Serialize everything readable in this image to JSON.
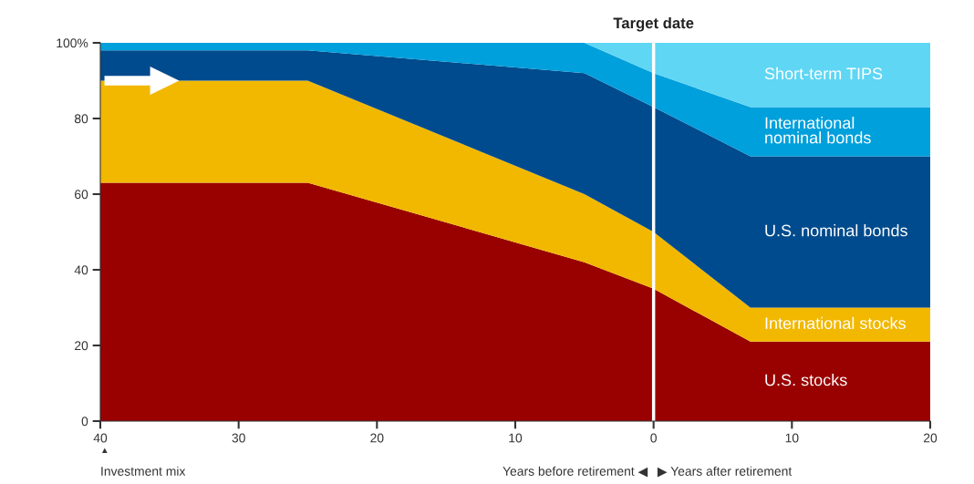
{
  "chart_data": {
    "type": "area",
    "stacked": true,
    "x": [
      -40,
      -25,
      -5,
      0,
      7,
      20
    ],
    "series": [
      {
        "name": "U.S. stocks",
        "color": "#990000",
        "values": [
          63,
          63,
          42,
          35,
          21,
          21
        ]
      },
      {
        "name": "International stocks",
        "color": "#f2b800",
        "values": [
          27,
          27,
          18,
          15,
          9,
          9
        ]
      },
      {
        "name": "U.S. nominal bonds",
        "color": "#004b8d",
        "values": [
          8,
          8,
          32,
          33,
          40,
          40
        ]
      },
      {
        "name": "International\nnominal bonds",
        "color": "#00a0dc",
        "values": [
          2,
          2,
          8,
          9,
          13,
          13
        ]
      },
      {
        "name": "Short-term TIPS",
        "color": "#5fd6f4",
        "values": [
          0,
          0,
          0,
          8,
          17,
          17
        ]
      }
    ],
    "xlim": [
      -40,
      20
    ],
    "xticks": [
      {
        "value": -40,
        "label": "40"
      },
      {
        "value": -30,
        "label": "30"
      },
      {
        "value": -20,
        "label": "20"
      },
      {
        "value": -10,
        "label": "10"
      },
      0,
      10,
      20
    ],
    "ylim": [
      0,
      100
    ],
    "yticks": [
      0,
      20,
      40,
      60,
      80,
      {
        "value": 100,
        "label": "100%"
      }
    ],
    "ref_lines": [
      {
        "axis": "x",
        "value": 0,
        "label": "Target date",
        "color": "#ffffff"
      }
    ],
    "annotations": [
      "▲",
      "Investment mix",
      "Years before retirement ◀",
      "▶ Years after retirement"
    ],
    "grid": false,
    "legend": false
  }
}
